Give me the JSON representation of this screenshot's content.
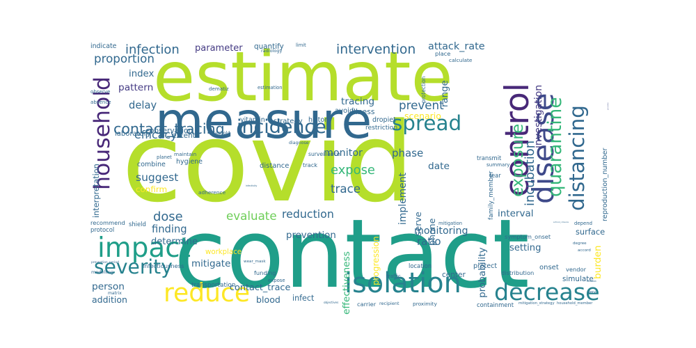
{
  "words": [
    {
      "text": "covid",
      "color": "#b5de2b"
    },
    {
      "text": "contact",
      "color": "#1f9e89"
    },
    {
      "text": "estimate",
      "color": "#b5de2b"
    },
    {
      "text": "measure",
      "color": "#31688e"
    },
    {
      "text": "control",
      "color": "#482878"
    },
    {
      "text": "disease",
      "color": "#3e4989"
    },
    {
      "text": "quarantine",
      "color": "#35b779"
    },
    {
      "text": "distancing",
      "color": "#31688e"
    },
    {
      "text": "isolation",
      "color": "#26828e"
    },
    {
      "text": "decrease",
      "color": "#26828e"
    },
    {
      "text": "household",
      "color": "#482878"
    },
    {
      "text": "reduce",
      "color": "#fde725"
    },
    {
      "text": "impact",
      "color": "#1f9e89"
    },
    {
      "text": "severity",
      "color": "#26828e"
    },
    {
      "text": "incidence",
      "color": "#31688e"
    },
    {
      "text": "spread",
      "color": "#26828e"
    },
    {
      "text": "contact_tracing",
      "color": "#31688e"
    },
    {
      "text": "exposure",
      "color": "#35b779"
    },
    {
      "text": "incubation",
      "color": "#31688e"
    },
    {
      "text": "investigation",
      "color": "#443a83"
    },
    {
      "text": "reproduction_number",
      "color": "#31688e"
    },
    {
      "text": "precaution",
      "color": "#3e4989"
    },
    {
      "text": "infection",
      "color": "#31688e"
    },
    {
      "text": "intervention",
      "color": "#31688e"
    },
    {
      "text": "attack_rate",
      "color": "#31688e"
    },
    {
      "text": "proportion",
      "color": "#31688e"
    },
    {
      "text": "parameter",
      "color": "#443a83"
    },
    {
      "text": "index",
      "color": "#31688e"
    },
    {
      "text": "pattern",
      "color": "#443a83"
    },
    {
      "text": "delay",
      "color": "#31688e"
    },
    {
      "text": "efficacy",
      "color": "#31688e"
    },
    {
      "text": "suggest",
      "color": "#31688e"
    },
    {
      "text": "confirm",
      "color": "#fde725"
    },
    {
      "text": "dose",
      "color": "#31688e"
    },
    {
      "text": "evaluate",
      "color": "#6ece58"
    },
    {
      "text": "reduction",
      "color": "#31688e"
    },
    {
      "text": "finding",
      "color": "#31688e"
    },
    {
      "text": "determine",
      "color": "#31688e"
    },
    {
      "text": "mitigate",
      "color": "#31688e"
    },
    {
      "text": "person",
      "color": "#31688e"
    },
    {
      "text": "addition",
      "color": "#31688e"
    },
    {
      "text": "contact_trace",
      "color": "#31688e"
    },
    {
      "text": "infect",
      "color": "#31688e"
    },
    {
      "text": "blood",
      "color": "#31688e"
    },
    {
      "text": "prevent",
      "color": "#31688e"
    },
    {
      "text": "scenario",
      "color": "#fde725"
    },
    {
      "text": "tracing",
      "color": "#31688e"
    },
    {
      "text": "avoid",
      "color": "#31688e"
    },
    {
      "text": "illness",
      "color": "#31688e"
    },
    {
      "text": "phase",
      "color": "#31688e"
    },
    {
      "text": "expose",
      "color": "#35b779"
    },
    {
      "text": "trace",
      "color": "#31688e"
    },
    {
      "text": "monitor",
      "color": "#31688e"
    },
    {
      "text": "date",
      "color": "#31688e"
    },
    {
      "text": "implement",
      "color": "#31688e"
    },
    {
      "text": "interval",
      "color": "#31688e"
    },
    {
      "text": "monitoring",
      "color": "#31688e"
    },
    {
      "text": "setting",
      "color": "#31688e"
    },
    {
      "text": "surface",
      "color": "#31688e"
    },
    {
      "text": "burden",
      "color": "#fde725"
    },
    {
      "text": "ratio",
      "color": "#31688e"
    },
    {
      "text": "effectiveness",
      "color": "#35b779"
    },
    {
      "text": "probability",
      "color": "#31688e"
    },
    {
      "text": "prevention",
      "color": "#31688e"
    },
    {
      "text": "progression",
      "color": "#fde725"
    },
    {
      "text": "range",
      "color": "#31688e"
    },
    {
      "text": "interpretation",
      "color": "#31688e"
    },
    {
      "text": "laboratory",
      "color": "#31688e"
    },
    {
      "text": "observation",
      "color": "#31688e"
    },
    {
      "text": "maintain",
      "color": "#31688e"
    },
    {
      "text": "hygiene",
      "color": "#31688e"
    },
    {
      "text": "combine",
      "color": "#31688e"
    },
    {
      "text": "workplace",
      "color": "#fde725"
    },
    {
      "text": "symptom_onset",
      "color": "#31688e"
    },
    {
      "text": "distribution",
      "color": "#31688e"
    },
    {
      "text": "simulate",
      "color": "#31688e"
    },
    {
      "text": "onset",
      "color": "#31688e"
    },
    {
      "text": "center",
      "color": "#31688e"
    },
    {
      "text": "protect",
      "color": "#31688e"
    },
    {
      "text": "infectiousness",
      "color": "#31688e"
    },
    {
      "text": "transportation",
      "color": "#31688e"
    },
    {
      "text": "vitamin",
      "color": "#31688e"
    },
    {
      "text": "extent",
      "color": "#31688e"
    },
    {
      "text": "quantify",
      "color": "#31688e"
    },
    {
      "text": "dropiet",
      "color": "#31688e"
    },
    {
      "text": "restriction",
      "color": "#31688e"
    },
    {
      "text": "strategy",
      "color": "#31688e"
    },
    {
      "text": "history",
      "color": "#31688e"
    },
    {
      "text": "surveillance",
      "color": "#31688e"
    },
    {
      "text": "distance",
      "color": "#31688e"
    },
    {
      "text": "recommend",
      "color": "#31688e"
    },
    {
      "text": "protocol",
      "color": "#31688e"
    },
    {
      "text": "indicate",
      "color": "#31688e"
    },
    {
      "text": "limit",
      "color": "#31688e"
    },
    {
      "text": "radiology",
      "color": "#31688e"
    },
    {
      "text": "place",
      "color": "#31688e"
    },
    {
      "text": "calculate",
      "color": "#31688e"
    },
    {
      "text": "estimation",
      "color": "#31688e"
    },
    {
      "text": "dematiz",
      "color": "#31688e"
    },
    {
      "text": "observe",
      "color": "#31688e"
    },
    {
      "text": "absence",
      "color": "#31688e"
    },
    {
      "text": "threshold",
      "color": "#31688e"
    },
    {
      "text": "diagnose",
      "color": "#31688e"
    },
    {
      "text": "track",
      "color": "#31688e"
    },
    {
      "text": "planet",
      "color": "#31688e"
    },
    {
      "text": "shield",
      "color": "#31688e"
    },
    {
      "text": "adherence",
      "color": "#31688e"
    },
    {
      "text": "wear_mask",
      "color": "#31688e"
    },
    {
      "text": "funding",
      "color": "#31688e"
    },
    {
      "text": "expose",
      "color": "#31688e"
    },
    {
      "text": "traffic",
      "color": "#31688e"
    },
    {
      "text": "location",
      "color": "#31688e"
    },
    {
      "text": "objectives",
      "color": "#31688e"
    },
    {
      "text": "carrier",
      "color": "#31688e"
    },
    {
      "text": "recipient",
      "color": "#31688e"
    },
    {
      "text": "proximity",
      "color": "#31688e"
    },
    {
      "text": "containment",
      "color": "#31688e"
    },
    {
      "text": "mitigation_strategy",
      "color": "#31688e"
    },
    {
      "text": "household_member",
      "color": "#31688e"
    },
    {
      "text": "school_closure",
      "color": "#31688e"
    },
    {
      "text": "depend",
      "color": "#31688e"
    },
    {
      "text": "degree",
      "color": "#31688e"
    },
    {
      "text": "accord",
      "color": "#31688e"
    },
    {
      "text": "vendor",
      "color": "#31688e"
    },
    {
      "text": "emission",
      "color": "#31688e"
    },
    {
      "text": "very",
      "color": "#31688e"
    },
    {
      "text": "fear",
      "color": "#31688e"
    },
    {
      "text": "summary",
      "color": "#31688e"
    },
    {
      "text": "transmit",
      "color": "#31688e"
    },
    {
      "text": "family_member",
      "color": "#31688e"
    },
    {
      "text": "prevention_period",
      "color": "#31688e"
    },
    {
      "text": "modelling",
      "color": "#31688e"
    },
    {
      "text": "matrix",
      "color": "#31688e"
    },
    {
      "text": "infectivity",
      "color": "#31688e"
    },
    {
      "text": "serve",
      "color": "#31688e"
    },
    {
      "text": "phone",
      "color": "#31688e"
    },
    {
      "text": "protection",
      "color": "#31688e"
    },
    {
      "text": "mitigation",
      "color": "#31688e"
    },
    {
      "text": "eye",
      "color": "#31688e"
    },
    {
      "text": "assumption",
      "color": "#31688e"
    },
    {
      "text": "encounter",
      "color": "#31688e"
    }
  ]
}
